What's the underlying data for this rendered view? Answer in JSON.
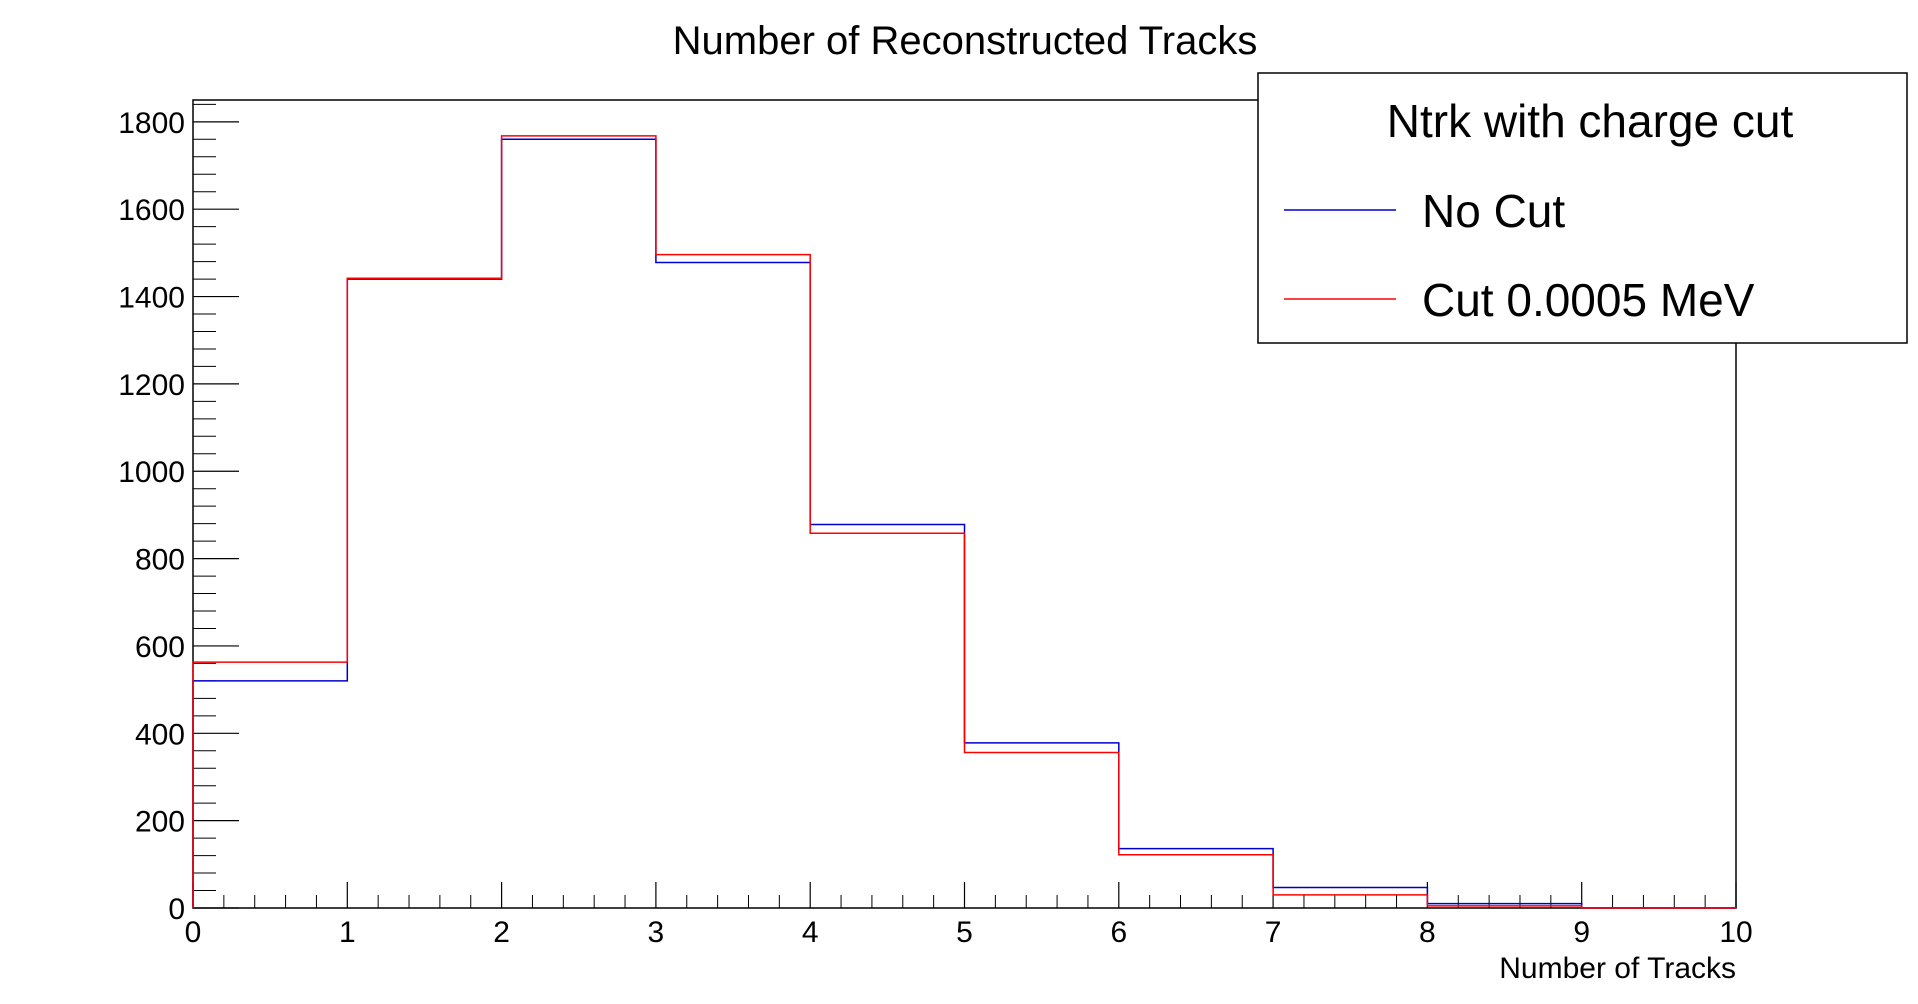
{
  "chart_data": {
    "type": "histogram",
    "title": "Number of Reconstructed Tracks",
    "xlabel": "Number of Tracks",
    "ylabel": "",
    "xlim": [
      0,
      10
    ],
    "ylim": [
      0,
      1850
    ],
    "xticks": [
      0,
      1,
      2,
      3,
      4,
      5,
      6,
      7,
      8,
      9,
      10
    ],
    "yticks": [
      0,
      200,
      400,
      600,
      800,
      1000,
      1200,
      1400,
      1600,
      1800
    ],
    "bin_edges": [
      0,
      1,
      2,
      3,
      4,
      5,
      6,
      7,
      8,
      9,
      10
    ],
    "grid": false,
    "legend": {
      "title": "Ntrk with charge cut",
      "position": "top-right"
    },
    "series": [
      {
        "name": "No Cut",
        "color": "#0000cc",
        "values": [
          520,
          1440,
          1760,
          1478,
          878,
          378,
          136,
          47,
          10,
          0
        ]
      },
      {
        "name": "Cut 0.0005 MeV",
        "color": "#ff0000",
        "values": [
          563,
          1442,
          1768,
          1496,
          858,
          356,
          122,
          30,
          5,
          0
        ]
      }
    ]
  }
}
